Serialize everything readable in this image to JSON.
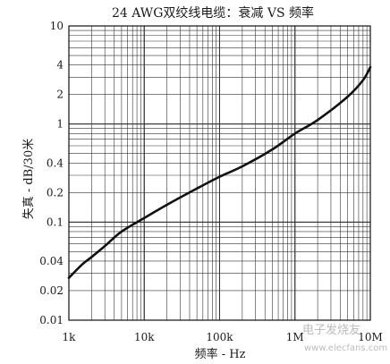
{
  "chart_data": {
    "type": "line",
    "title": "24 AWG双绞线电缆：衰减 VS 频率",
    "xlabel": "频率 - Hz",
    "ylabel": "失真 - dB/30米",
    "x_scale": "log",
    "y_scale": "log",
    "xlim": [
      1000,
      10000000
    ],
    "ylim": [
      0.01,
      10
    ],
    "grid": true,
    "x_ticks": [
      {
        "value": 1000,
        "label": "1k"
      },
      {
        "value": 10000,
        "label": "10k"
      },
      {
        "value": 100000,
        "label": "100k"
      },
      {
        "value": 1000000,
        "label": "1M"
      },
      {
        "value": 10000000,
        "label": "10M"
      }
    ],
    "y_ticks": [
      {
        "value": 10,
        "label": "10"
      },
      {
        "value": 4,
        "label": "4"
      },
      {
        "value": 2,
        "label": "2"
      },
      {
        "value": 1,
        "label": "1"
      },
      {
        "value": 0.4,
        "label": "0.4"
      },
      {
        "value": 0.2,
        "label": "0.2"
      },
      {
        "value": 0.1,
        "label": "0.1"
      },
      {
        "value": 0.04,
        "label": "0.04"
      },
      {
        "value": 0.02,
        "label": "0.02"
      },
      {
        "value": 0.01,
        "label": "0.01"
      }
    ],
    "series": [
      {
        "color": "#111111",
        "x": [
          1000,
          1500,
          2000,
          3000,
          5000,
          10000,
          20000,
          50000,
          100000,
          200000,
          500000,
          1000000,
          2000000,
          5000000,
          8000000,
          10000000
        ],
        "y": [
          0.027,
          0.037,
          0.044,
          0.057,
          0.08,
          0.11,
          0.15,
          0.22,
          0.29,
          0.37,
          0.55,
          0.8,
          1.1,
          1.9,
          2.8,
          3.8
        ]
      }
    ]
  },
  "watermark": {
    "line1": "电子发烧友",
    "line2": "www.elecfans.com"
  }
}
